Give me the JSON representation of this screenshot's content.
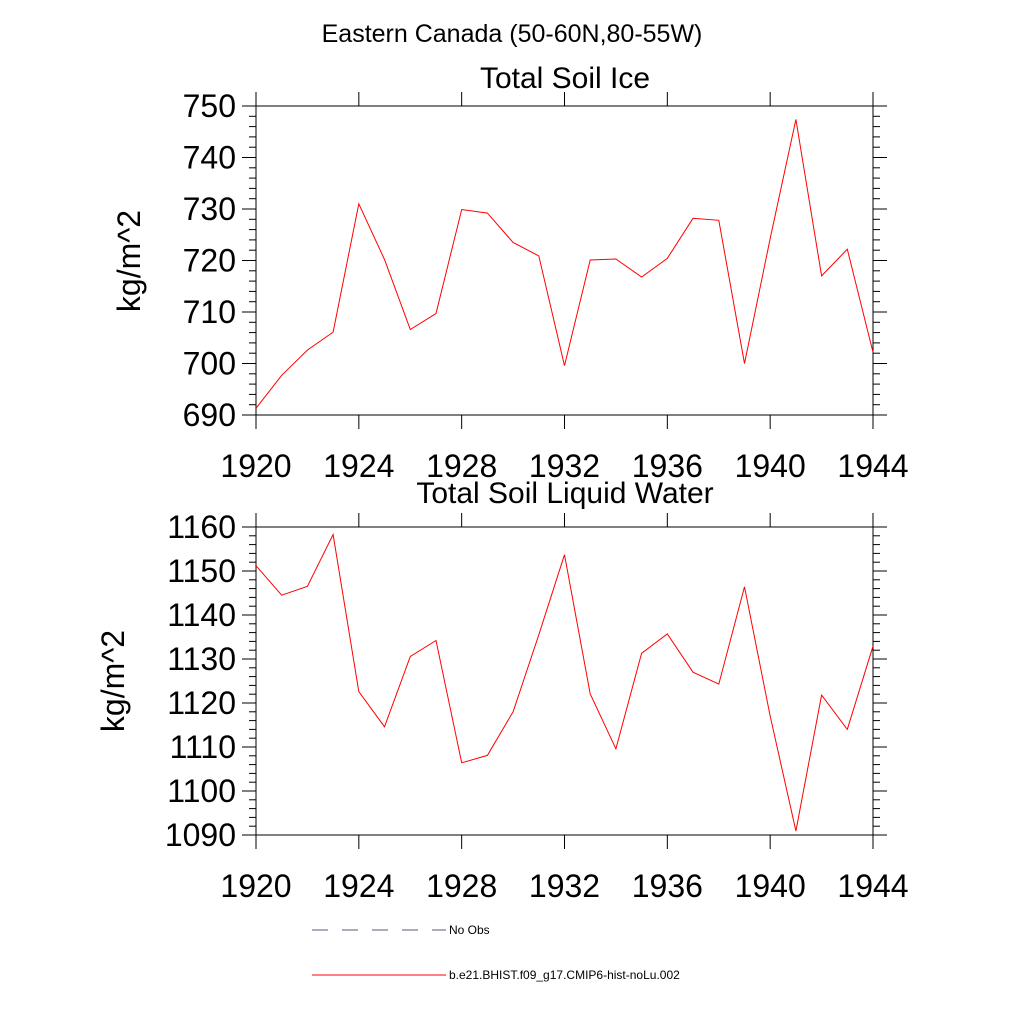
{
  "figure": {
    "suptitle": "Eastern Canada (50-60N,80-55W)"
  },
  "legend": {
    "entries": [
      {
        "label": "No Obs",
        "color": "#5a5a80",
        "style": "dashed"
      },
      {
        "label": "b.e21.BHIST.f09_g17.CMIP6-hist-noLu.002",
        "color": "#ff0000",
        "style": "solid"
      }
    ]
  },
  "chart_data": [
    {
      "type": "line",
      "title": "Total Soil Ice",
      "xlabel": "",
      "ylabel": "kg/m^2",
      "xlim": [
        1920,
        1944
      ],
      "ylim": [
        690,
        750
      ],
      "xticks": [
        1920,
        1924,
        1928,
        1932,
        1936,
        1940,
        1944
      ],
      "yticks": [
        690,
        700,
        710,
        720,
        730,
        740,
        750
      ],
      "x": [
        1920,
        1921,
        1922,
        1923,
        1924,
        1925,
        1926,
        1927,
        1928,
        1929,
        1930,
        1931,
        1932,
        1933,
        1934,
        1935,
        1936,
        1937,
        1938,
        1939,
        1940,
        1941,
        1942,
        1943,
        1944
      ],
      "series": [
        {
          "color": "#ff0000",
          "values": [
            691.3,
            697.7,
            702.6,
            706.1,
            731.0,
            720.2,
            706.6,
            709.7,
            729.9,
            729.2,
            723.5,
            720.9,
            699.6,
            720.1,
            720.3,
            716.8,
            720.4,
            728.2,
            727.8,
            700.0,
            724.3,
            747.4,
            717.0,
            722.2,
            702.2
          ]
        }
      ],
      "grid": false
    },
    {
      "type": "line",
      "title": "Total Soil Liquid Water",
      "xlabel": "",
      "ylabel": "kg/m^2",
      "xlim": [
        1920,
        1944
      ],
      "ylim": [
        1090,
        1160
      ],
      "xticks": [
        1920,
        1924,
        1928,
        1932,
        1936,
        1940,
        1944
      ],
      "yticks": [
        1090,
        1100,
        1110,
        1120,
        1130,
        1140,
        1150,
        1160
      ],
      "x": [
        1920,
        1921,
        1922,
        1923,
        1924,
        1925,
        1926,
        1927,
        1928,
        1929,
        1930,
        1931,
        1932,
        1933,
        1934,
        1935,
        1936,
        1937,
        1938,
        1939,
        1940,
        1941,
        1942,
        1943,
        1944
      ],
      "series": [
        {
          "color": "#ff0000",
          "values": [
            1151.2,
            1144.5,
            1146.5,
            1158.3,
            1122.6,
            1114.6,
            1130.6,
            1134.2,
            1106.4,
            1108.1,
            1118.0,
            1135.5,
            1153.7,
            1122.1,
            1109.6,
            1131.3,
            1135.7,
            1127.0,
            1124.3,
            1146.4,
            1117.0,
            1090.9,
            1121.8,
            1114.0,
            1132.9
          ]
        }
      ],
      "grid": false
    }
  ]
}
